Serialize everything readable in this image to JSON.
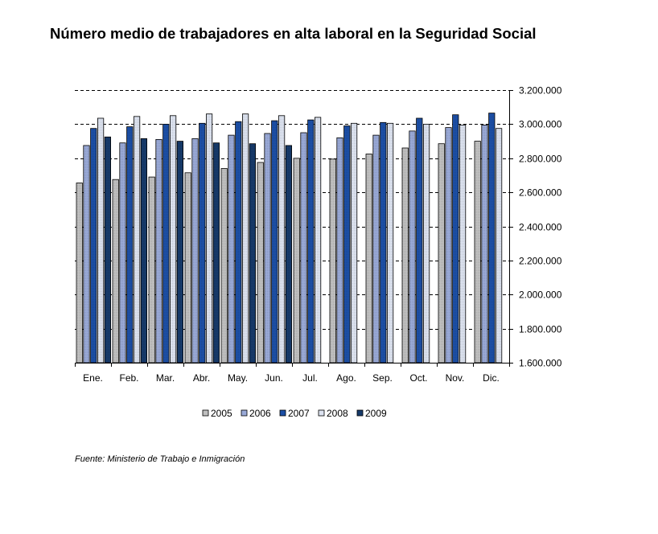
{
  "title": "Número medio de trabajadores en alta laboral en la Seguridad Social",
  "source": "Fuente: Ministerio de Trabajo e Inmigración",
  "chart_data": {
    "type": "bar",
    "title": "Número medio de trabajadores en alta laboral en la Seguridad Social",
    "xlabel": "",
    "ylabel": "",
    "categories": [
      "Ene.",
      "Feb.",
      "Mar.",
      "Abr.",
      "May.",
      "Jun.",
      "Jul.",
      "Ago.",
      "Sep.",
      "Oct.",
      "Nov.",
      "Dic."
    ],
    "ylim": [
      1600000,
      3200000
    ],
    "yticks": [
      1600000,
      1800000,
      2000000,
      2200000,
      2400000,
      2600000,
      2800000,
      3000000,
      3200000
    ],
    "ytick_labels": [
      "1.600.000",
      "1.800.000",
      "2.000.000",
      "2.200.000",
      "2.400.000",
      "2.600.000",
      "2.800.000",
      "3.000.000",
      "3.200.000"
    ],
    "y_axis_side": "right",
    "grid": "horizontal dashed",
    "legend_position": "bottom",
    "series": [
      {
        "name": "2005",
        "color": "#c0c0c0",
        "values": [
          2655000,
          2675000,
          2690000,
          2715000,
          2740000,
          2775000,
          2800000,
          2795000,
          2825000,
          2860000,
          2885000,
          2900000
        ]
      },
      {
        "name": "2006",
        "color": "#9aaad8",
        "values": [
          2875000,
          2890000,
          2910000,
          2915000,
          2935000,
          2945000,
          2950000,
          2920000,
          2935000,
          2960000,
          2980000,
          2995000
        ]
      },
      {
        "name": "2007",
        "color": "#1c4fa6",
        "values": [
          2975000,
          2985000,
          3000000,
          3005000,
          3015000,
          3020000,
          3025000,
          2990000,
          3010000,
          3035000,
          3055000,
          3065000
        ]
      },
      {
        "name": "2008",
        "color": "#dde3f0",
        "values": [
          3035000,
          3045000,
          3050000,
          3060000,
          3060000,
          3050000,
          3040000,
          3005000,
          3005000,
          3000000,
          2995000,
          2975000
        ]
      },
      {
        "name": "2009",
        "color": "#163a6a",
        "values": [
          2925000,
          2915000,
          2900000,
          2890000,
          2885000,
          2875000,
          null,
          null,
          null,
          null,
          null,
          null
        ]
      }
    ]
  }
}
